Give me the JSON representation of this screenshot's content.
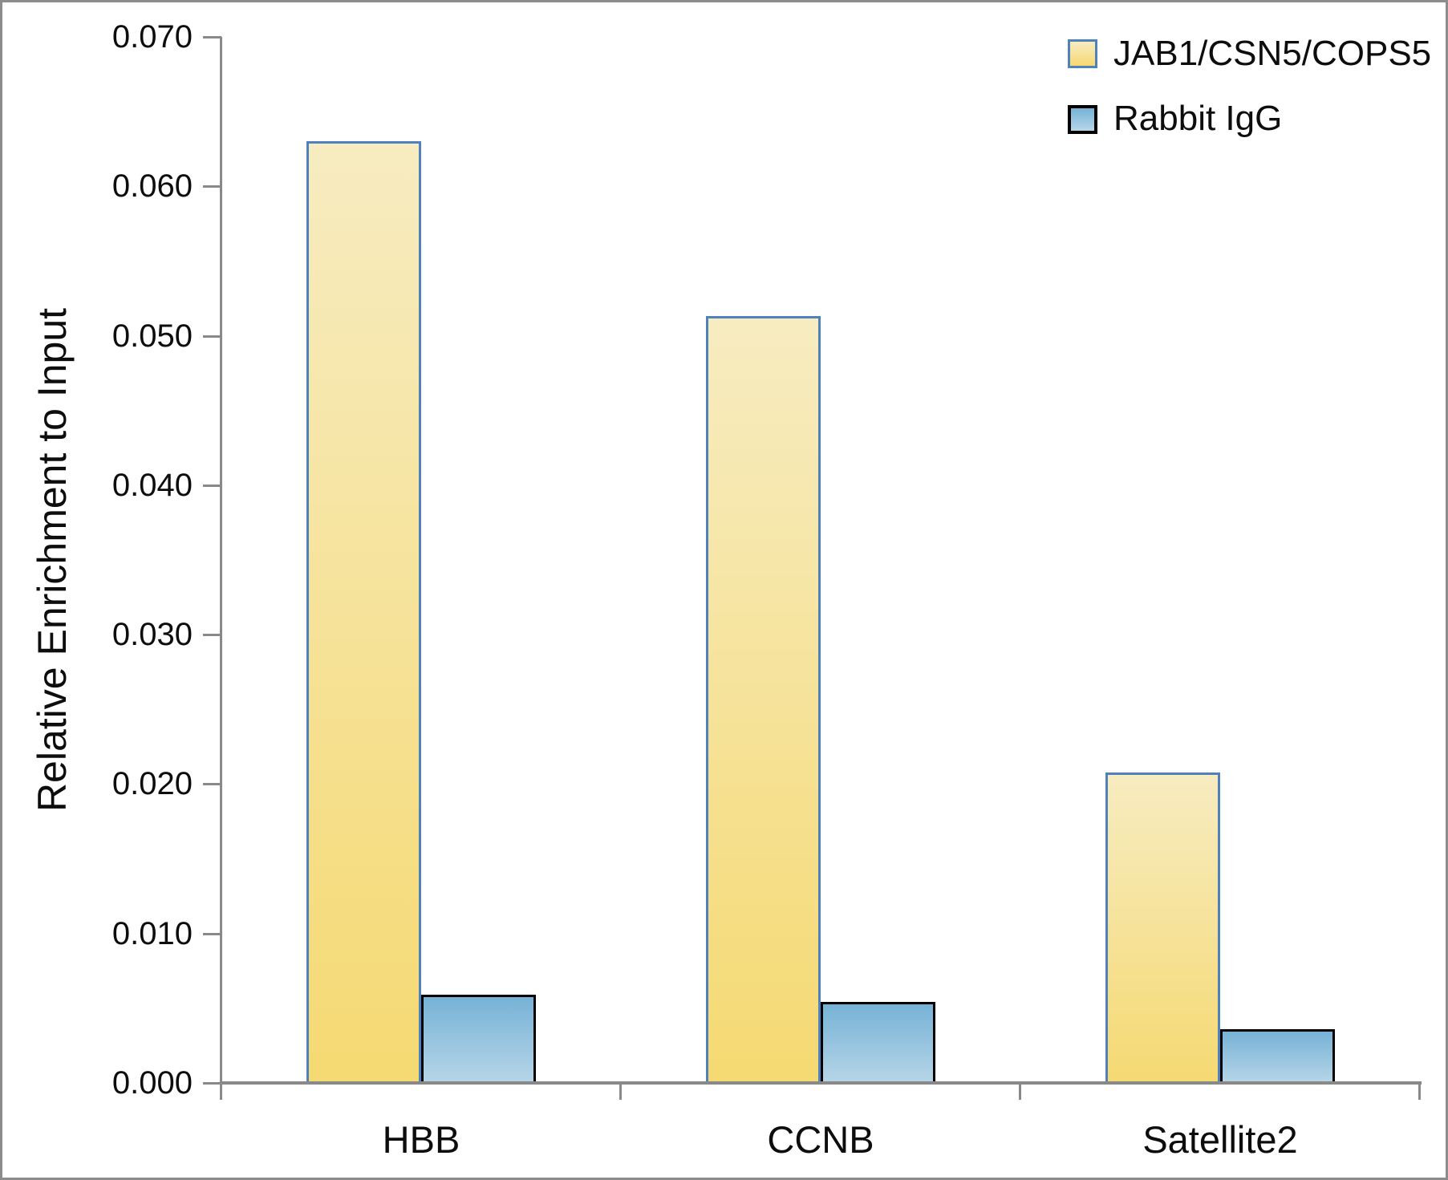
{
  "chart_data": {
    "type": "bar",
    "title": "",
    "xlabel": "",
    "ylabel": "Relative Enrichment to Input",
    "categories": [
      "HBB",
      "CCNB",
      "Satellite2"
    ],
    "series": [
      {
        "name": "JAB1/CSN5/COPS5",
        "values": [
          0.063,
          0.0513,
          0.0208
        ],
        "fill_top": "#F7ECC1",
        "fill_bottom": "#F5D972",
        "border_color": "#4F81BD"
      },
      {
        "name": "Rabbit IgG",
        "values": [
          0.0059,
          0.0054,
          0.0036
        ],
        "fill_top": "#76B2D6",
        "fill_bottom": "#B7D6E8",
        "border_color": "#000000"
      }
    ],
    "ylim": [
      0,
      0.07
    ],
    "ytick_step": 0.01,
    "ytick_labels": [
      "0.000",
      "0.010",
      "0.020",
      "0.030",
      "0.040",
      "0.050",
      "0.060",
      "0.070"
    ],
    "grid": false,
    "legend_position": "top-right",
    "axis_color": "#898989",
    "frame_color": "#8c8c8c",
    "text_color": "#0d0d0d"
  }
}
